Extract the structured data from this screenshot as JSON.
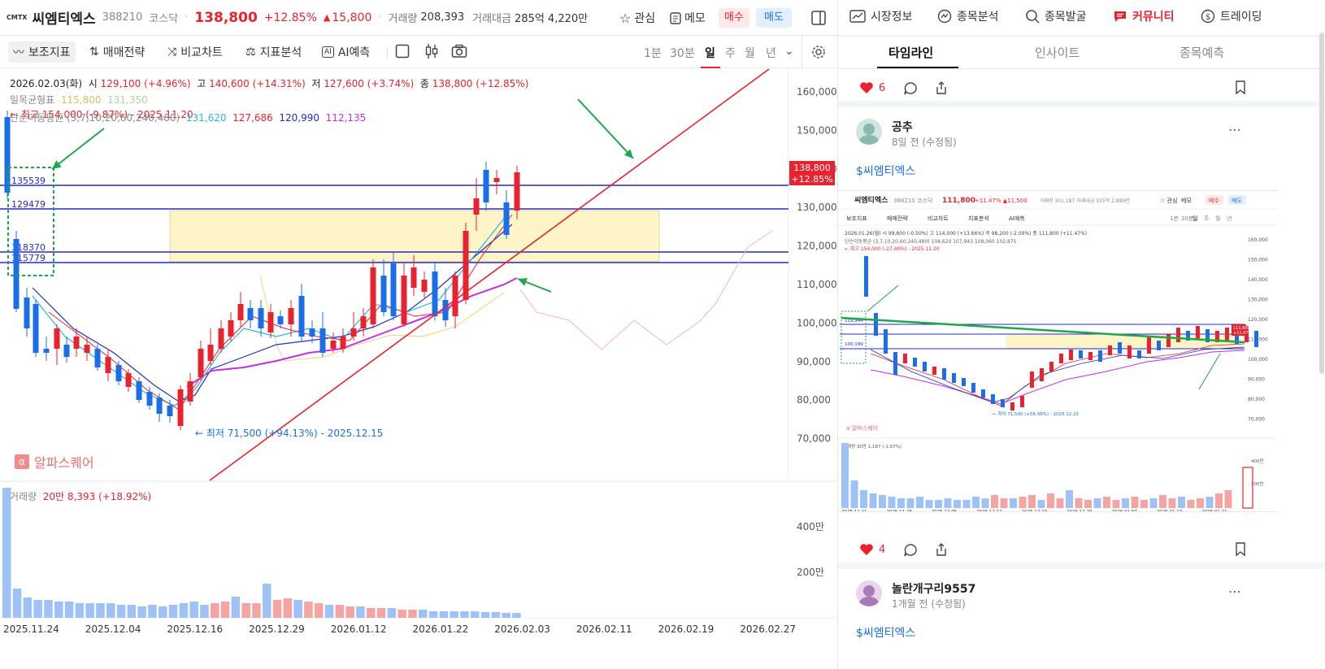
{
  "stock": {
    "logo": "CMTX",
    "name": "씨엠티엑스",
    "code": "388210",
    "market": "코스닥",
    "price": "138,800",
    "change_pct": "+12.85%",
    "change_arrow": "▲",
    "change_abs": "15,800",
    "volume_label": "거래량",
    "volume": "208,393",
    "value_label": "거래대금",
    "value": "285억 4,220만"
  },
  "header_actions": {
    "watch": "관심",
    "memo": "메모",
    "buy": "매수",
    "sell": "매도"
  },
  "toolbar": {
    "indicators": "보조지표",
    "strategy": "매매전략",
    "compare": "비교차트",
    "analysis": "지표분석",
    "ai": "AI예측",
    "periods": [
      "1분",
      "30분",
      "일",
      "주",
      "월",
      "년"
    ]
  },
  "chart_info": {
    "date": "2026.02.03(화)",
    "open_label": "시",
    "open": "129,100 (+4.96%)",
    "high_label": "고",
    "high": "140,600 (+14.31%)",
    "low_label": "저",
    "low": "127,600 (+3.74%)",
    "close_label": "종",
    "close": "138,800 (+12.85%)",
    "ichimoku_label": "일목균형표",
    "ichimoku_1": "115,800",
    "ichimoku_2": "131,350",
    "max_label": "← 최고 154,000 (-9.87%) - 2025.11.20",
    "ma_label": "단순이동평균 (3,7,10,20,60,240,480)",
    "ma_values": [
      "131,620",
      "127,686",
      "120,990",
      "112,135"
    ],
    "min_label": "← 최저 71,500 (+94.13%) - 2025.12.15",
    "watermark": "알파스퀘어",
    "volume_label": "거래량",
    "volume_value": "20만 8,393 (+18.92%)"
  },
  "price_axis": [
    "160,000",
    "150,000",
    "140,000",
    "130,000",
    "120,000",
    "110,000",
    "100,000",
    "90,000",
    "80,000",
    "70,000"
  ],
  "current_price_tag": {
    "price": "138,800",
    "pct": "+12.85%"
  },
  "volume_axis": [
    "400만",
    "200만"
  ],
  "date_axis": [
    "2025.11.24",
    "2025.12.04",
    "2025.12.16",
    "2025.12.29",
    "2026.01.12",
    "2026.01.22",
    "2026.02.03",
    "2026.02.11",
    "2026.02.19",
    "2026.02.27"
  ],
  "level_lines": [
    "135539",
    "129479",
    "118370",
    "115779"
  ],
  "colors": {
    "up": "#e8232f",
    "down": "#1a6ee8",
    "accent": "#e8232f",
    "annotation": "#1fa64a"
  },
  "right_nav": [
    "시장정보",
    "종목분석",
    "종목발굴",
    "커뮤니티",
    "트레이딩"
  ],
  "right_tabs": [
    "타임라인",
    "인사이트",
    "종목예측"
  ],
  "posts": [
    {
      "likes": "6"
    },
    {
      "author": "공추",
      "time": "8일 전 (수정됨)",
      "tag": "$씨엠티엑스",
      "likes": "4"
    },
    {
      "author": "놀란개구리9557",
      "time": "1개월 전 (수정됨)",
      "tag": "$씨엠티엑스"
    }
  ],
  "embedded": {
    "name": "씨엠티엑스",
    "code": "388210",
    "market": "코스닥",
    "price": "111,800",
    "change_pct": "+11.47%",
    "change_abs": "▲11,500",
    "volume": "거래량 301,187",
    "value": "거래대금 325억 2,889만",
    "watch": "관심",
    "memo": "메모",
    "buy": "매수",
    "sell": "매도",
    "toolbar": [
      "보조지표",
      "매매전략",
      "비교차트",
      "지표분석",
      "AI예측"
    ],
    "periods": [
      "1분",
      "30분",
      "일",
      "주",
      "월",
      "년"
    ],
    "info": "2026.01.26(월)  시 99,800 (-0.50%)  고 114,000 (+13.66%)  저 98,200 (-2.09%)  종 111,800 (+11.47%)",
    "ma": "단순이동평균 (3,7,10,20,60,240,480)  108,620  107,943  108,060  102,875",
    "max": "← 최고 154,000 (-27.40%) - 2025.11.20",
    "min": "← 최저 71,500 (+56.36%) - 2025.12.15",
    "watermark": "알파스퀘어",
    "volume_label": "거래량  30만 1,187 (-1.07%)",
    "price_axis": [
      "160,000",
      "150,000",
      "140,000",
      "130,000",
      "120,000",
      "110,000",
      "100,000",
      "90,000",
      "80,000",
      "70,000"
    ],
    "levels": [
      "119,944",
      "100,199"
    ],
    "tag_price": "111,800",
    "tag_pct": "+11.47%",
    "volume_axis": [
      "400만",
      "200만"
    ],
    "date_axis": [
      "2025.11.21",
      "2025.11.28",
      "2025.12.05",
      "2025.12.12",
      "2025.12.19",
      "2025.12.29",
      "2026.01.07",
      "2026.01.14",
      "2026.01.21"
    ]
  }
}
